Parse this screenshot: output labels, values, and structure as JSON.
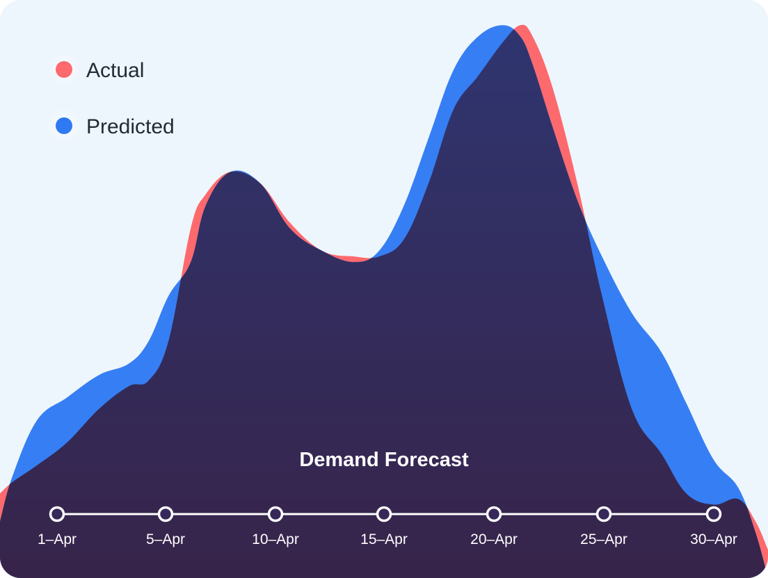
{
  "chart_data": {
    "type": "area",
    "title": "Demand Forecast",
    "categories": [
      "1–Apr",
      "5–Apr",
      "10–Apr",
      "15–Apr",
      "20–Apr",
      "25–Apr",
      "30–Apr"
    ],
    "xlabel": "",
    "ylabel": "",
    "xlim": [
      0,
      31
    ],
    "ylim": [
      0,
      100
    ],
    "grid": false,
    "legend_position": "top-left",
    "series": [
      {
        "name": "Actual",
        "color": "#fc6a6e",
        "x": [
          0,
          0.5,
          1.5,
          2.7,
          4.0,
          5.2,
          6.0,
          6.8,
          7.7,
          8.3,
          9.3,
          10.5,
          11.7,
          13.0,
          14.3,
          15.3,
          16.3,
          17.3,
          18.3,
          19.3,
          20.3,
          21.0,
          21.5,
          22.3,
          23.3,
          24.3,
          25.5,
          26.7,
          27.7,
          28.8,
          29.8,
          30.5,
          31.0
        ],
        "values": [
          15,
          17,
          20,
          24,
          30,
          34,
          35,
          42,
          62,
          68,
          72,
          70,
          63,
          58,
          57,
          57,
          60,
          70,
          83,
          89,
          95,
          98,
          96,
          87,
          70,
          50,
          30,
          22,
          15,
          13,
          14,
          10,
          5
        ]
      },
      {
        "name": "Predicted",
        "color": "#2f7af3",
        "x": [
          0,
          0.5,
          1.5,
          2.7,
          4.0,
          5.2,
          6.0,
          6.8,
          7.7,
          8.3,
          9.3,
          10.5,
          11.7,
          13.0,
          14.3,
          15.3,
          16.3,
          17.3,
          18.3,
          19.3,
          20.3,
          21.0,
          21.5,
          22.3,
          23.3,
          24.3,
          25.5,
          26.7,
          27.7,
          28.8,
          29.8,
          30.5,
          31.0
        ],
        "values": [
          10,
          18,
          28,
          32,
          36,
          38,
          42,
          50,
          56,
          66,
          72,
          70,
          62,
          58,
          56,
          58,
          66,
          78,
          90,
          96,
          98,
          96,
          91,
          80,
          67,
          57,
          47,
          40,
          31,
          21,
          16,
          8,
          0
        ]
      }
    ]
  },
  "legend": {
    "actual_label": "Actual",
    "predicted_label": "Predicted"
  },
  "colors": {
    "card_background": "#eef6fd",
    "actual": "#fc6a6e",
    "predicted": "#2f7af3",
    "overlap_top": "#2f3570",
    "overlap_bottom": "#37244a",
    "axis": "#ffffff"
  }
}
